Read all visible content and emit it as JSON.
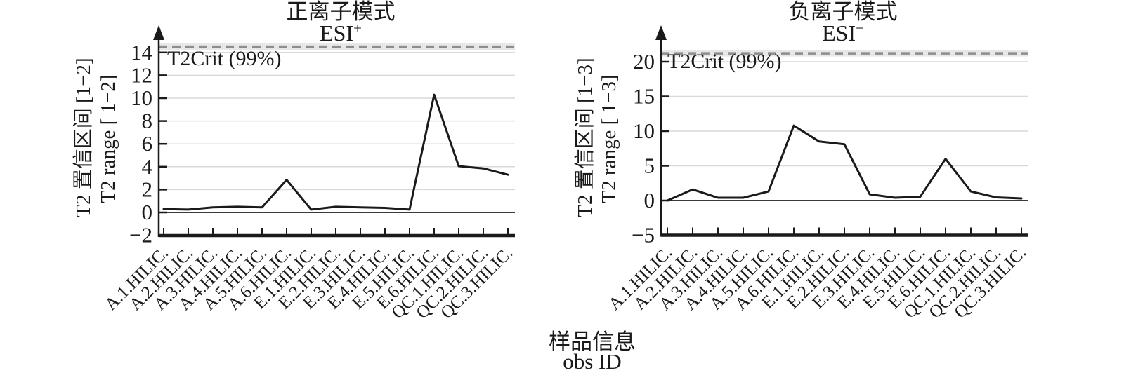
{
  "figure": {
    "xlabel_cn": "样品信息",
    "xlabel_en": "obs ID",
    "background": "#ffffff",
    "text_color": "#1a1a1a",
    "line_color": "#1a1a1a",
    "grid_color": "#d9d9d9",
    "zero_line_color": "#3a3a3a",
    "crit_line_color": "#8d8d8d",
    "crit_band_color": "#e7e7e7"
  },
  "chart_data": [
    {
      "type": "line",
      "title": "正离子模式",
      "subtitle": "ESI",
      "subtitle_sup": "+",
      "ylabel_cn": "T2 置信区间 [1−2]",
      "ylabel_en": "T2 range [ 1−2]",
      "crit_label": "T2Crit (99%)",
      "crit_value": 14.5,
      "ylim": [
        -2,
        15.3
      ],
      "yticks": [
        -2,
        0,
        2,
        4,
        6,
        8,
        10,
        12,
        14
      ],
      "grid": "horizontal",
      "legend": "none",
      "categories": [
        "A.1.HILIC.",
        "A.2.HILIC.",
        "A.3.HILIC.",
        "A.4.HILIC.",
        "A.5.HILIC.",
        "A.6.HILIC.",
        "E.1.HILIC.",
        "E.2.HILIC.",
        "E.3.HILIC.",
        "E.4.HILIC.",
        "E.5.HILIC.",
        "E.6.HILIC.",
        "QC.1.HILIC.",
        "QC.2.HILIC.",
        "QC.3.HILIC."
      ],
      "values": [
        0.3,
        0.25,
        0.45,
        0.5,
        0.45,
        2.85,
        0.25,
        0.5,
        0.45,
        0.4,
        0.25,
        10.3,
        4.05,
        3.85,
        3.3
      ]
    },
    {
      "type": "line",
      "title": "负离子模式",
      "subtitle": "ESI",
      "subtitle_sup": "−",
      "ylabel_cn": "T2 置信区间 [1−3]",
      "ylabel_en": "T2 range [ 1−3]",
      "crit_label": "T2Crit (99%)",
      "crit_value": 21.2,
      "ylim": [
        -5,
        23.3
      ],
      "yticks": [
        -5,
        0,
        5,
        10,
        15,
        20
      ],
      "grid": "horizontal",
      "legend": "none",
      "categories": [
        "A.1.HILIC.",
        "A.2.HILIC.",
        "A.3.HILIC.",
        "A.4.HILIC.",
        "A.5.HILIC.",
        "A.6.HILIC.",
        "E.1.HILIC.",
        "E.2.HILIC.",
        "E.3.HILIC.",
        "E.4.HILIC.",
        "E.5.HILIC.",
        "E.6.HILIC.",
        "QC.1.HILIC.",
        "QC.2.HILIC.",
        "QC.3.HILIC."
      ],
      "values": [
        0.0,
        1.6,
        0.4,
        0.4,
        1.3,
        10.8,
        8.5,
        8.1,
        0.9,
        0.4,
        0.55,
        6.0,
        1.3,
        0.45,
        0.3
      ]
    }
  ]
}
